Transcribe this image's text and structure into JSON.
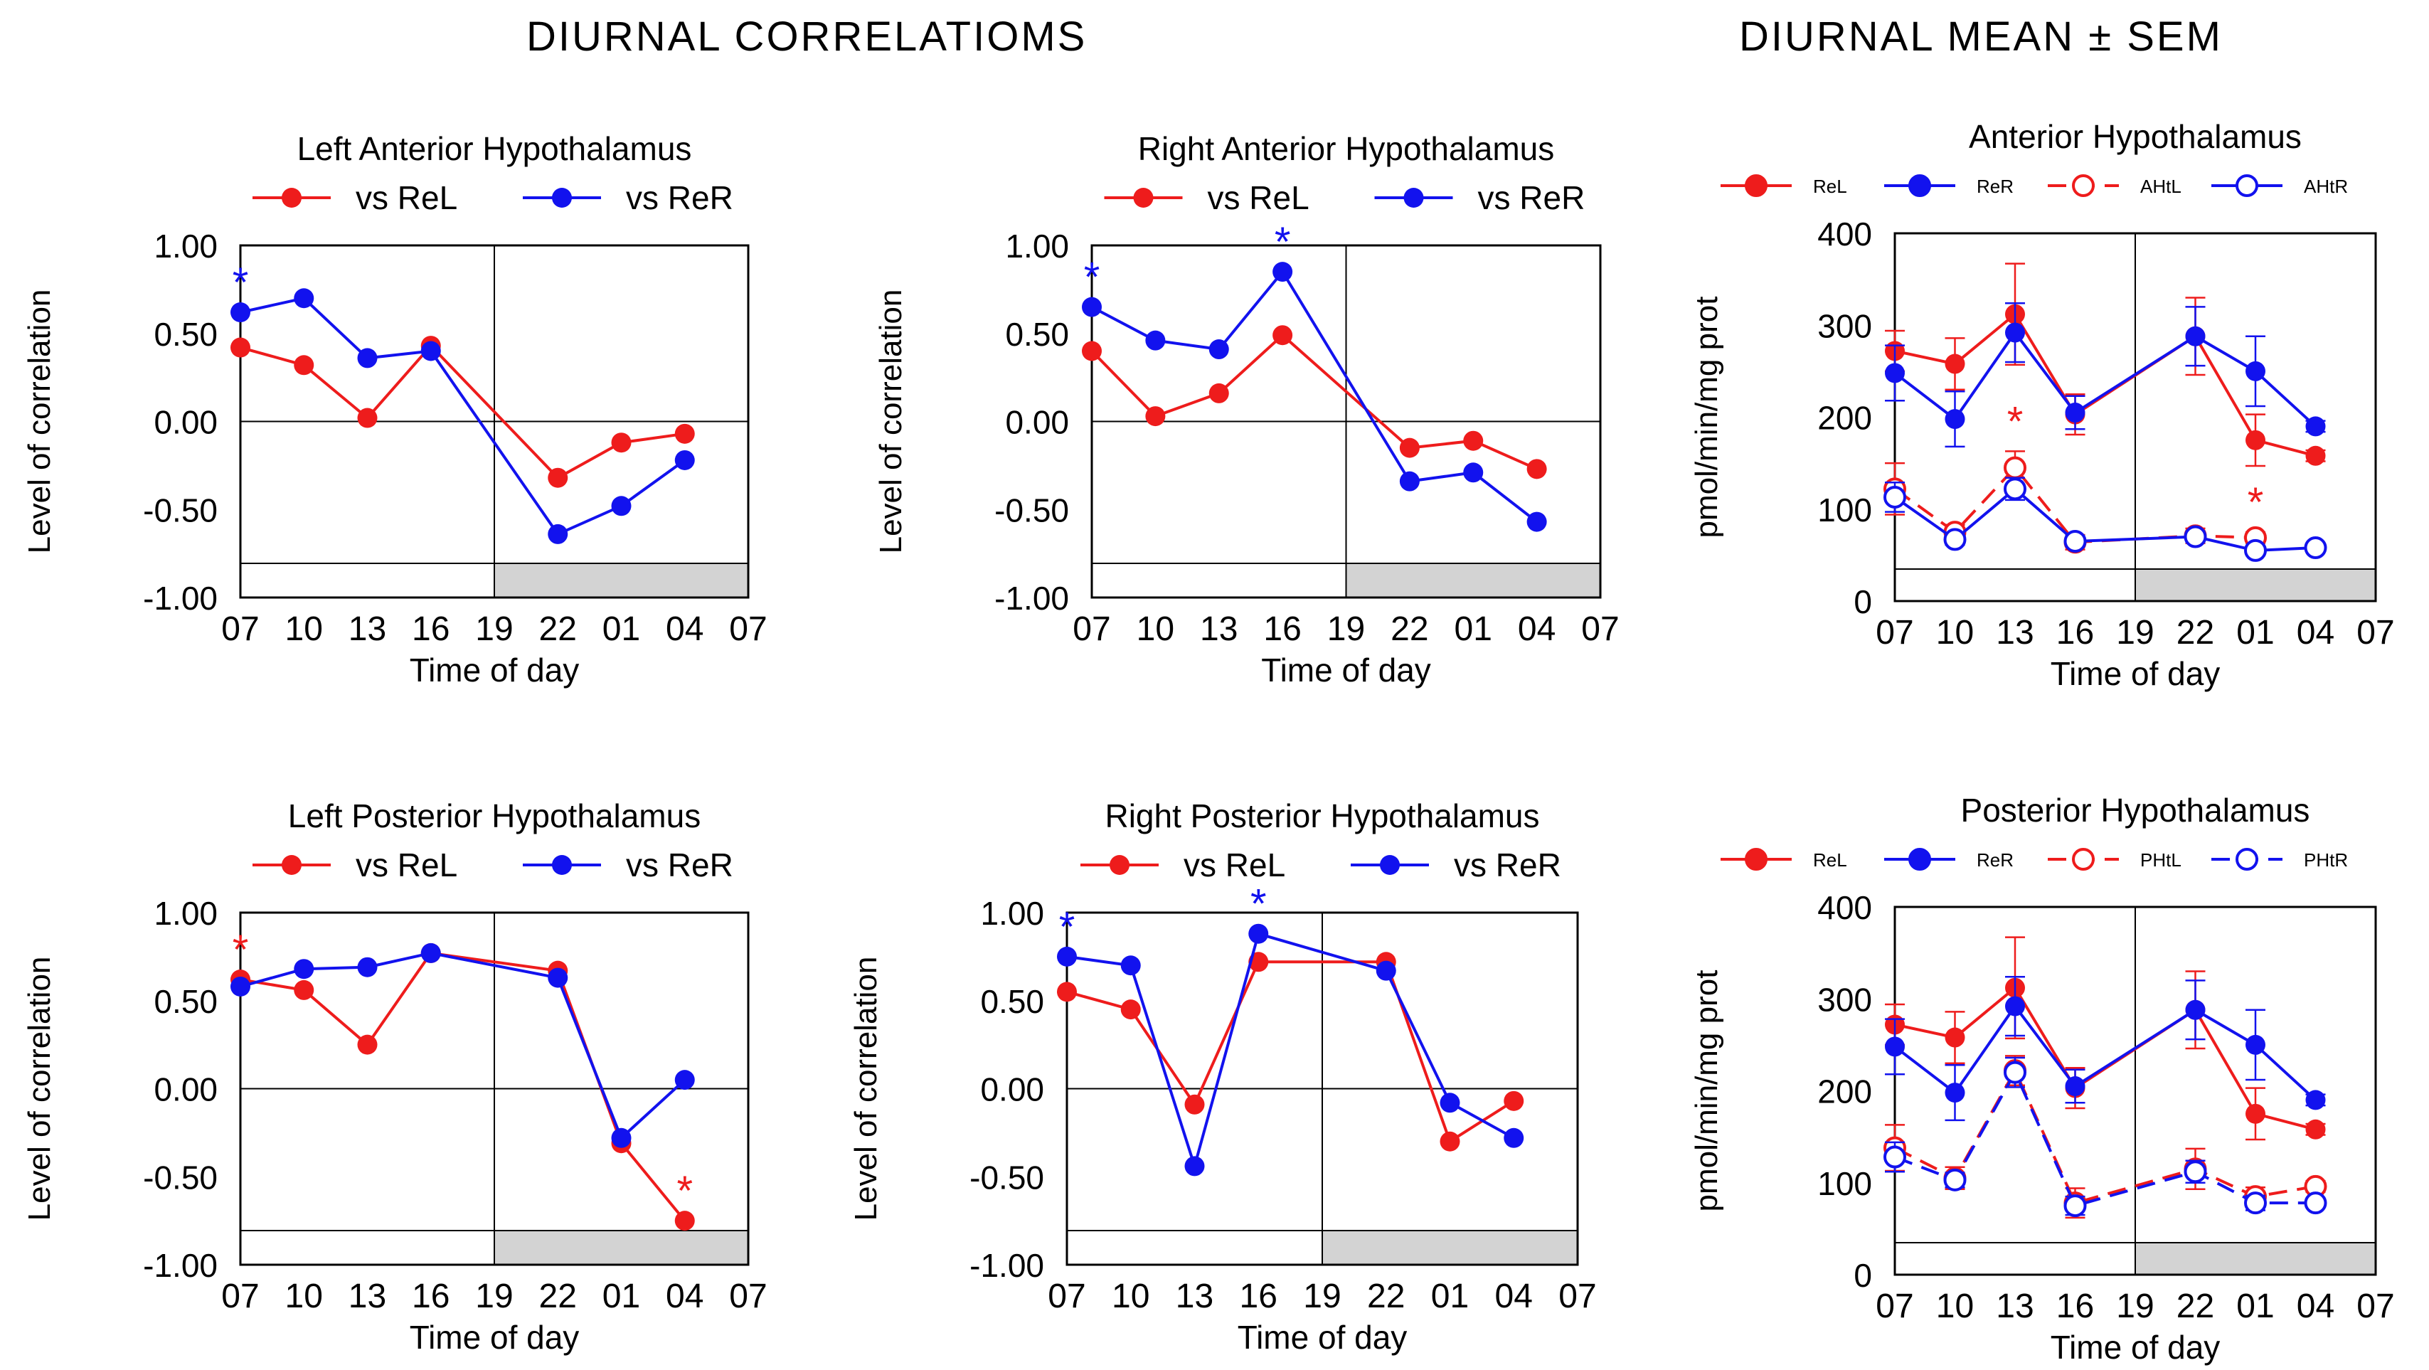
{
  "headings": {
    "correlations": "DIURNAL CORRELATIOMS",
    "mean_sem": "DIURNAL MEAN ± SEM"
  },
  "colors": {
    "red": "#ee1c1c",
    "blue": "#1212ee",
    "dark_band": "#d3d3d3"
  },
  "chart_data": [
    {
      "id": "lah",
      "type": "line",
      "title": "Left Anterior Hypothalamus",
      "xlabel": "Time of day",
      "ylabel": "Level of correlation",
      "x_ticks": [
        "07",
        "10",
        "13",
        "16",
        "19",
        "22",
        "01",
        "04",
        "07"
      ],
      "y_ticks": [
        "1.00",
        "0.50",
        "0.00",
        "-0.50",
        "-1.00"
      ],
      "ylim": [
        -1,
        1
      ],
      "legend": [
        "vs ReL",
        "vs ReR"
      ],
      "series": [
        {
          "name": "vs ReL",
          "color": "red",
          "points": [
            [
              0,
              0.42
            ],
            [
              1,
              0.32
            ],
            [
              2,
              0.02
            ],
            [
              3,
              0.43
            ],
            [
              5,
              -0.32
            ],
            [
              6,
              -0.12
            ],
            [
              7,
              -0.07
            ]
          ],
          "stars": [],
          "ls": "solid",
          "marker": "filled"
        },
        {
          "name": "vs ReR",
          "color": "blue",
          "points": [
            [
              0,
              0.62
            ],
            [
              1,
              0.7
            ],
            [
              2,
              0.36
            ],
            [
              3,
              0.4
            ],
            [
              5,
              -0.64
            ],
            [
              6,
              -0.48
            ],
            [
              7,
              -0.22
            ]
          ],
          "stars": [
            0
          ],
          "ls": "solid",
          "marker": "filled"
        }
      ]
    },
    {
      "id": "rah",
      "type": "line",
      "title": "Right Anterior Hypothalamus",
      "xlabel": "Time of day",
      "ylabel": "Level of correlation",
      "x_ticks": [
        "07",
        "10",
        "13",
        "16",
        "19",
        "22",
        "01",
        "04",
        "07"
      ],
      "y_ticks": [
        "1.00",
        "0.50",
        "0.00",
        "-0.50",
        "-1.00"
      ],
      "ylim": [
        -1,
        1
      ],
      "legend": [
        "vs ReL",
        "vs ReR"
      ],
      "series": [
        {
          "name": "vs ReL",
          "color": "red",
          "points": [
            [
              0,
              0.4
            ],
            [
              1,
              0.03
            ],
            [
              2,
              0.16
            ],
            [
              3,
              0.49
            ],
            [
              5,
              -0.15
            ],
            [
              6,
              -0.11
            ],
            [
              7,
              -0.27
            ]
          ],
          "stars": [],
          "ls": "solid",
          "marker": "filled"
        },
        {
          "name": "vs ReR",
          "color": "blue",
          "points": [
            [
              0,
              0.65
            ],
            [
              1,
              0.46
            ],
            [
              2,
              0.41
            ],
            [
              3,
              0.85
            ],
            [
              5,
              -0.34
            ],
            [
              6,
              -0.29
            ],
            [
              7,
              -0.57
            ]
          ],
          "stars": [
            0,
            3
          ],
          "ls": "solid",
          "marker": "filled"
        }
      ]
    },
    {
      "id": "ah",
      "type": "line",
      "title": "Anterior Hypothalamus",
      "xlabel": "Time of day",
      "ylabel": "pmol/min/mg prot",
      "x_ticks": [
        "07",
        "10",
        "13",
        "16",
        "19",
        "22",
        "01",
        "04",
        "07"
      ],
      "y_ticks": [
        "400",
        "300",
        "200",
        "100",
        "0"
      ],
      "ylim": [
        0,
        400
      ],
      "legend": [
        "ReL",
        "ReR",
        "AHtL",
        "AHtR"
      ],
      "series": [
        {
          "name": "ReL",
          "color": "red",
          "points": [
            [
              0,
              272,
              22
            ],
            [
              1,
              258,
              28
            ],
            [
              2,
              312,
              55
            ],
            [
              3,
              203,
              22
            ],
            [
              5,
              288,
              42
            ],
            [
              6,
              175,
              28
            ],
            [
              7,
              158,
              6
            ]
          ],
          "stars": [],
          "ls": "solid",
          "marker": "filled"
        },
        {
          "name": "ReR",
          "color": "blue",
          "points": [
            [
              0,
              248,
              30
            ],
            [
              1,
              198,
              30
            ],
            [
              2,
              292,
              32
            ],
            [
              3,
              205,
              18
            ],
            [
              5,
              288,
              32
            ],
            [
              6,
              250,
              38
            ],
            [
              7,
              190,
              6
            ]
          ],
          "stars": [],
          "ls": "solid",
          "marker": "filled"
        },
        {
          "name": "AHtL",
          "color": "red",
          "points": [
            [
              0,
              122,
              28
            ],
            [
              1,
              75,
              8
            ],
            [
              2,
              145,
              18
            ],
            [
              3,
              64,
              8
            ],
            [
              5,
              71,
              8
            ],
            [
              6,
              69,
              6
            ]
          ],
          "stars": [
            2,
            6
          ],
          "ls": "dash",
          "marker": "open"
        },
        {
          "name": "AHtR",
          "color": "blue",
          "points": [
            [
              0,
              113,
              16
            ],
            [
              1,
              67,
              6
            ],
            [
              2,
              122,
              12
            ],
            [
              3,
              65,
              6
            ],
            [
              5,
              70,
              6
            ],
            [
              6,
              55,
              5
            ],
            [
              7,
              58,
              4
            ]
          ],
          "stars": [],
          "ls": "solid",
          "marker": "open"
        }
      ]
    },
    {
      "id": "lph",
      "type": "line",
      "title": "Left Posterior Hypothalamus",
      "xlabel": "Time of day",
      "ylabel": "Level of correlation",
      "x_ticks": [
        "07",
        "10",
        "13",
        "16",
        "19",
        "22",
        "01",
        "04",
        "07"
      ],
      "y_ticks": [
        "1.00",
        "0.50",
        "0.00",
        "-0.50",
        "-1.00"
      ],
      "ylim": [
        -1,
        1
      ],
      "legend": [
        "vs ReL",
        "vs ReR"
      ],
      "series": [
        {
          "name": "vs ReL",
          "color": "red",
          "points": [
            [
              0,
              0.62
            ],
            [
              1,
              0.56
            ],
            [
              2,
              0.25
            ],
            [
              3,
              0.77
            ],
            [
              5,
              0.67
            ],
            [
              6,
              -0.31
            ],
            [
              7,
              -0.75
            ]
          ],
          "stars": [
            0,
            7
          ],
          "ls": "solid",
          "marker": "filled"
        },
        {
          "name": "vs ReR",
          "color": "blue",
          "points": [
            [
              0,
              0.58
            ],
            [
              1,
              0.68
            ],
            [
              2,
              0.69
            ],
            [
              3,
              0.77
            ],
            [
              5,
              0.63
            ],
            [
              6,
              -0.28
            ],
            [
              7,
              0.05
            ]
          ],
          "stars": [],
          "ls": "solid",
          "marker": "filled"
        }
      ]
    },
    {
      "id": "rph",
      "type": "line",
      "title": "Right Posterior Hypothalamus",
      "xlabel": "Time of day",
      "ylabel": "Level of correlation",
      "x_ticks": [
        "07",
        "10",
        "13",
        "16",
        "19",
        "22",
        "01",
        "04",
        "07"
      ],
      "y_ticks": [
        "1.00",
        "0.50",
        "0.00",
        "-0.50",
        "-1.00"
      ],
      "ylim": [
        -1,
        1
      ],
      "legend": [
        "vs ReL",
        "vs ReR"
      ],
      "series": [
        {
          "name": "vs ReL",
          "color": "red",
          "points": [
            [
              0,
              0.55
            ],
            [
              1,
              0.45
            ],
            [
              2,
              -0.09
            ],
            [
              3,
              0.72
            ],
            [
              5,
              0.72
            ],
            [
              6,
              -0.3
            ],
            [
              7,
              -0.07
            ]
          ],
          "stars": [],
          "ls": "solid",
          "marker": "filled"
        },
        {
          "name": "vs ReR",
          "color": "blue",
          "points": [
            [
              0,
              0.75
            ],
            [
              1,
              0.7
            ],
            [
              2,
              -0.44
            ],
            [
              3,
              0.88
            ],
            [
              5,
              0.67
            ],
            [
              6,
              -0.08
            ],
            [
              7,
              -0.28
            ]
          ],
          "stars": [
            0,
            3
          ],
          "ls": "solid",
          "marker": "filled"
        }
      ]
    },
    {
      "id": "ph",
      "type": "line",
      "title": "Posterior Hypothalamus",
      "xlabel": "Time of day",
      "ylabel": "pmol/min/mg prot",
      "x_ticks": [
        "07",
        "10",
        "13",
        "16",
        "19",
        "22",
        "01",
        "04",
        "07"
      ],
      "y_ticks": [
        "400",
        "300",
        "200",
        "100",
        "0"
      ],
      "ylim": [
        0,
        400
      ],
      "legend": [
        "ReL",
        "ReR",
        "PHtL",
        "PHtR"
      ],
      "series": [
        {
          "name": "ReL",
          "color": "red",
          "points": [
            [
              0,
              272,
              22
            ],
            [
              1,
              258,
              28
            ],
            [
              2,
              312,
              55
            ],
            [
              3,
              203,
              22
            ],
            [
              5,
              288,
              42
            ],
            [
              6,
              175,
              28
            ],
            [
              7,
              158,
              6
            ]
          ],
          "stars": [],
          "ls": "solid",
          "marker": "filled"
        },
        {
          "name": "ReR",
          "color": "blue",
          "points": [
            [
              0,
              248,
              30
            ],
            [
              1,
              198,
              30
            ],
            [
              2,
              292,
              32
            ],
            [
              3,
              205,
              18
            ],
            [
              5,
              288,
              32
            ],
            [
              6,
              250,
              38
            ],
            [
              7,
              190,
              6
            ]
          ],
          "stars": [],
          "ls": "solid",
          "marker": "filled"
        },
        {
          "name": "PHtL",
          "color": "red",
          "points": [
            [
              0,
              138,
              25
            ],
            [
              1,
              105,
              12
            ],
            [
              2,
              222,
              16
            ],
            [
              3,
              78,
              16
            ],
            [
              5,
              115,
              22
            ],
            [
              6,
              85,
              10
            ],
            [
              7,
              96,
              6
            ]
          ],
          "stars": [],
          "ls": "dash",
          "marker": "open"
        },
        {
          "name": "PHtR",
          "color": "blue",
          "points": [
            [
              0,
              128,
              16
            ],
            [
              1,
              103,
              8
            ],
            [
              2,
              220,
              16
            ],
            [
              3,
              75,
              10
            ],
            [
              5,
              112,
              12
            ],
            [
              6,
              78,
              8
            ],
            [
              7,
              78,
              5
            ]
          ],
          "stars": [],
          "ls": "dash",
          "marker": "open"
        }
      ]
    }
  ]
}
